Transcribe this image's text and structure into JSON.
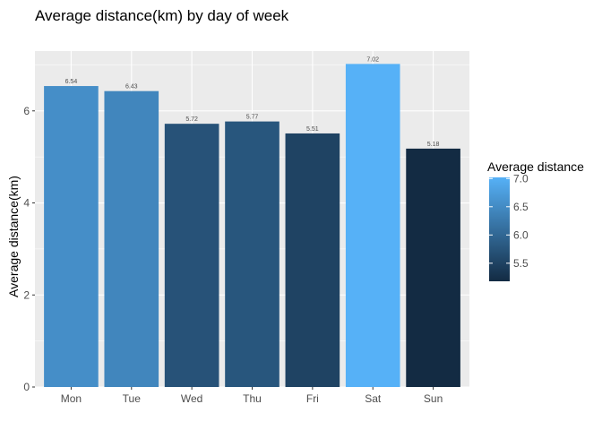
{
  "chart_data": {
    "type": "bar",
    "title": "Average distance(km) by day of week",
    "xlabel": "",
    "ylabel": "Average distance(km)",
    "categories": [
      "Mon",
      "Tue",
      "Wed",
      "Thu",
      "Fri",
      "Sat",
      "Sun"
    ],
    "values": [
      6.54,
      6.43,
      5.72,
      5.77,
      5.51,
      7.02,
      5.18
    ],
    "value_labels": [
      "6.54",
      "6.43",
      "5.72",
      "5.77",
      "5.51",
      "7.02",
      "5.18"
    ],
    "ylim": [
      0,
      7.3
    ],
    "yticks": [
      0,
      2,
      4,
      6
    ],
    "grid": true,
    "legend": {
      "title": "Average distance",
      "position": "right",
      "breaks": [
        7.0,
        6.5,
        6.0,
        5.5
      ],
      "break_labels": [
        "7.0",
        "6.5",
        "6.0",
        "5.5"
      ],
      "color_low": "#132B43",
      "color_high": "#56B1F7"
    },
    "colors": {
      "panel_background": "#EBEBEB",
      "grid": "#FFFFFF"
    }
  }
}
